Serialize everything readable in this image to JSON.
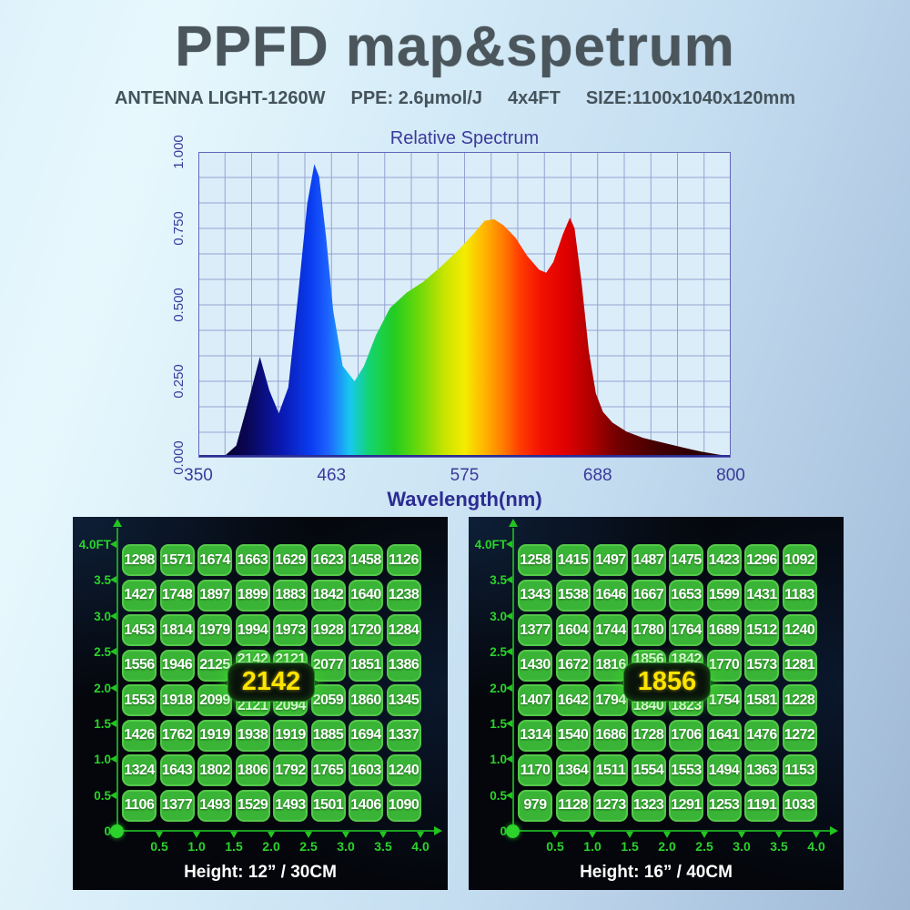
{
  "header": {
    "title": "PPFD map&spetrum",
    "subtitle_parts": [
      "ANTENNA LIGHT-1260W",
      "PPE: 2.6μmol/J",
      "4x4FT",
      "SIZE:1100x1040x120mm"
    ]
  },
  "colors": {
    "title_text": "#4b565c",
    "spectrum_label": "#3a3a9a",
    "spectrum_axis": "#2c2c92",
    "grid_line": "#96a2d2",
    "plot_bg": "#dbedf9",
    "cell_green": "#3ab436",
    "cell_border": "#54c94a",
    "axis_green": "#22c51f",
    "tick_label_green": "#2bd32b",
    "badge_text_yellow": "#ffe400",
    "panel_bg": "#04060b"
  },
  "chart_data": [
    {
      "type": "area",
      "title": "Relative Spectrum",
      "xlabel": "Wavelength(nm)",
      "ylabel": "",
      "xlim": [
        350,
        800
      ],
      "ylim": [
        0,
        1
      ],
      "grid": true,
      "x_ticks": [
        "350",
        "463",
        "575",
        "688",
        "800"
      ],
      "y_ticks": [
        "1.000",
        "0.750",
        "0.500",
        "0.250",
        "0.000"
      ],
      "points": [
        [
          350,
          0
        ],
        [
          372,
          0.005
        ],
        [
          382,
          0.04
        ],
        [
          392,
          0.18
        ],
        [
          402,
          0.33
        ],
        [
          410,
          0.22
        ],
        [
          418,
          0.145
        ],
        [
          426,
          0.23
        ],
        [
          434,
          0.52
        ],
        [
          442,
          0.83
        ],
        [
          448,
          0.96
        ],
        [
          452,
          0.92
        ],
        [
          458,
          0.72
        ],
        [
          464,
          0.48
        ],
        [
          472,
          0.3
        ],
        [
          482,
          0.25
        ],
        [
          490,
          0.3
        ],
        [
          500,
          0.4
        ],
        [
          512,
          0.49
        ],
        [
          526,
          0.54
        ],
        [
          540,
          0.575
        ],
        [
          555,
          0.625
        ],
        [
          570,
          0.68
        ],
        [
          582,
          0.73
        ],
        [
          592,
          0.775
        ],
        [
          600,
          0.78
        ],
        [
          608,
          0.76
        ],
        [
          618,
          0.72
        ],
        [
          628,
          0.66
        ],
        [
          638,
          0.615
        ],
        [
          644,
          0.605
        ],
        [
          650,
          0.64
        ],
        [
          658,
          0.73
        ],
        [
          664,
          0.785
        ],
        [
          668,
          0.75
        ],
        [
          674,
          0.57
        ],
        [
          680,
          0.35
        ],
        [
          686,
          0.21
        ],
        [
          692,
          0.15
        ],
        [
          700,
          0.115
        ],
        [
          712,
          0.085
        ],
        [
          726,
          0.065
        ],
        [
          742,
          0.05
        ],
        [
          758,
          0.035
        ],
        [
          775,
          0.02
        ],
        [
          790,
          0.01
        ],
        [
          800,
          0.005
        ]
      ],
      "gradient": [
        [
          350,
          "#05010d"
        ],
        [
          390,
          "#0a0550"
        ],
        [
          420,
          "#0a18b0"
        ],
        [
          445,
          "#0a3cf0"
        ],
        [
          460,
          "#1e64ff"
        ],
        [
          478,
          "#18c8f0"
        ],
        [
          495,
          "#14d46e"
        ],
        [
          515,
          "#22cc22"
        ],
        [
          535,
          "#66d80a"
        ],
        [
          558,
          "#c8e400"
        ],
        [
          575,
          "#f4ec00"
        ],
        [
          592,
          "#ffb400"
        ],
        [
          608,
          "#ff7a00"
        ],
        [
          622,
          "#ff3c00"
        ],
        [
          640,
          "#f21000"
        ],
        [
          660,
          "#e00000"
        ],
        [
          680,
          "#b40000"
        ],
        [
          705,
          "#700000"
        ],
        [
          740,
          "#400000"
        ],
        [
          800,
          "#1c0000"
        ]
      ]
    },
    {
      "type": "heatmap",
      "caption": "Height: 12” / 30CM",
      "center_value": "2142",
      "x_ticks": [
        "0.5",
        "1.0",
        "1.5",
        "2.0",
        "2.5",
        "3.0",
        "3.5",
        "4.0"
      ],
      "y_ticks": [
        "4.0FT",
        "3.5",
        "3.0",
        "2.5",
        "2.0",
        "1.5",
        "1.0",
        "0.5",
        "0"
      ],
      "values": [
        [
          1298,
          1571,
          1674,
          1663,
          1629,
          1623,
          1458,
          1126
        ],
        [
          1427,
          1748,
          1897,
          1899,
          1883,
          1842,
          1640,
          1238
        ],
        [
          1453,
          1814,
          1979,
          1994,
          1973,
          1928,
          1720,
          1284
        ],
        [
          1556,
          1946,
          2125,
          2142,
          2121,
          2077,
          1851,
          1386
        ],
        [
          1553,
          1918,
          2099,
          2121,
          2094,
          2059,
          1860,
          1345
        ],
        [
          1426,
          1762,
          1919,
          1938,
          1919,
          1885,
          1694,
          1337
        ],
        [
          1324,
          1643,
          1802,
          1806,
          1792,
          1765,
          1603,
          1240
        ],
        [
          1106,
          1377,
          1493,
          1529,
          1493,
          1501,
          1406,
          1090
        ]
      ]
    },
    {
      "type": "heatmap",
      "caption": "Height: 16” / 40CM",
      "center_value": "1856",
      "x_ticks": [
        "0.5",
        "1.0",
        "1.5",
        "2.0",
        "2.5",
        "3.0",
        "3.5",
        "4.0"
      ],
      "y_ticks": [
        "4.0FT",
        "3.5",
        "3.0",
        "2.5",
        "2.0",
        "1.5",
        "1.0",
        "0.5",
        "0"
      ],
      "values": [
        [
          1258,
          1415,
          1497,
          1487,
          1475,
          1423,
          1296,
          1092
        ],
        [
          1343,
          1538,
          1646,
          1667,
          1653,
          1599,
          1431,
          1183
        ],
        [
          1377,
          1604,
          1744,
          1780,
          1764,
          1689,
          1512,
          1240
        ],
        [
          1430,
          1672,
          1816,
          1856,
          1842,
          1770,
          1573,
          1281
        ],
        [
          1407,
          1642,
          1794,
          1840,
          1823,
          1754,
          1581,
          1228
        ],
        [
          1314,
          1540,
          1686,
          1728,
          1706,
          1641,
          1476,
          1272
        ],
        [
          1170,
          1364,
          1511,
          1554,
          1553,
          1494,
          1363,
          1153
        ],
        [
          979,
          1128,
          1273,
          1323,
          1291,
          1253,
          1191,
          1033
        ]
      ]
    }
  ]
}
